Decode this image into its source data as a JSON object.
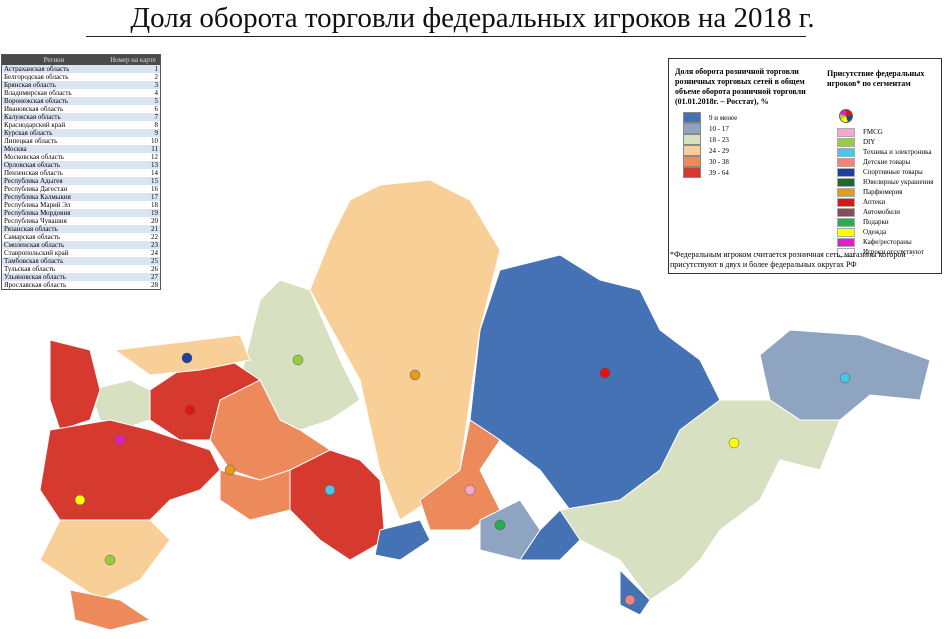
{
  "title": "Доля оборота торговли федеральных игроков на 2018 г.",
  "table": {
    "header": [
      "Регион",
      "Номер на карте"
    ],
    "rows": [
      [
        "Астраханская область",
        1
      ],
      [
        "Белгородская область",
        2
      ],
      [
        "Брянская область",
        3
      ],
      [
        "Владимирская область",
        4
      ],
      [
        "Воронежская область",
        5
      ],
      [
        "Ивановская область",
        6
      ],
      [
        "Калужская область",
        7
      ],
      [
        "Краснодарский край",
        8
      ],
      [
        "Курская область",
        9
      ],
      [
        "Липецкая область",
        10
      ],
      [
        "Москва",
        11
      ],
      [
        "Московская область",
        12
      ],
      [
        "Орловская область",
        13
      ],
      [
        "Пензенская область",
        14
      ],
      [
        "Республика Адыгея",
        15
      ],
      [
        "Республика Дагестан",
        16
      ],
      [
        "Республика Калмыкия",
        17
      ],
      [
        "Республика Марий Эл",
        18
      ],
      [
        "Республика Мордовия",
        19
      ],
      [
        "Республика Чувашия",
        20
      ],
      [
        "Рязанская область",
        21
      ],
      [
        "Самарская область",
        22
      ],
      [
        "Смоленская область",
        23
      ],
      [
        "Ставропольский край",
        24
      ],
      [
        "Тамбовская область",
        25
      ],
      [
        "Тульская область",
        26
      ],
      [
        "Ульяновская область",
        27
      ],
      [
        "Ярославская область",
        28
      ]
    ]
  },
  "legend": {
    "title": "Доля оборота розничной торговли розничных торговых сетей в общем объеме оборота розничной торговли (01.01.2018г. – Росстат), %",
    "bins": [
      {
        "label": "9 и менее",
        "color": "#4472b4"
      },
      {
        "label": "10 - 17",
        "color": "#8fa4c0"
      },
      {
        "label": "18 - 23",
        "color": "#d8e0c2"
      },
      {
        "label": "24 - 29",
        "color": "#f9cf98"
      },
      {
        "label": "30 - 38",
        "color": "#ec8a5c"
      },
      {
        "label": "39 - 64",
        "color": "#d63a2f"
      }
    ]
  },
  "segments": {
    "title": "Присутствие федеральных игроков* по сегментам",
    "items": [
      {
        "label": "FMCG",
        "color": "#f4a8cc"
      },
      {
        "label": "DIY",
        "color": "#9acd3a"
      },
      {
        "label": "Техника и электроника",
        "color": "#4ec4e8"
      },
      {
        "label": "Детские товары",
        "color": "#f2847e"
      },
      {
        "label": "Спортивные товары",
        "color": "#1f419e"
      },
      {
        "label": "Ювелирные украшения",
        "color": "#1b6b2b"
      },
      {
        "label": "Парфюмерия",
        "color": "#e69a1a"
      },
      {
        "label": "Аптеки",
        "color": "#e01414"
      },
      {
        "label": "Автомобили",
        "color": "#8a4a5a"
      },
      {
        "label": "Подарки",
        "color": "#22b050"
      },
      {
        "label": "Одежда",
        "color": "#ffff00"
      },
      {
        "label": "Кафе/рестораны",
        "color": "#e020c0"
      },
      {
        "label": "Игроки отсутствуют",
        "color": "#ffffff"
      }
    ]
  },
  "note": "*Федеральным игроком считается розничная сеть, магазины которой присутствуют в двух и более федеральных округах РФ"
}
